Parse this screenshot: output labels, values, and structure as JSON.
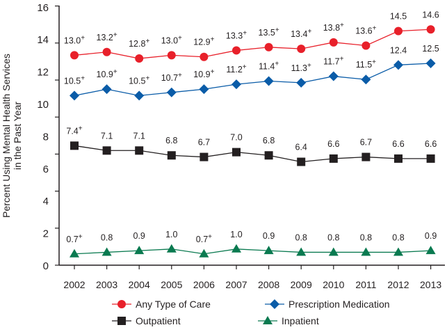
{
  "chart_data": {
    "type": "line",
    "title": "",
    "ylabel": [
      "Percent Using Mental Health Services",
      "in the Past Year"
    ],
    "xlabel": "",
    "ylim": [
      0,
      16
    ],
    "yticks": [
      0,
      2,
      4,
      6,
      8,
      10,
      12,
      14,
      16
    ],
    "categories": [
      "2002",
      "2003",
      "2004",
      "2005",
      "2006",
      "2007",
      "2008",
      "2009",
      "2010",
      "2011",
      "2012",
      "2013"
    ],
    "legend_position": "bottom",
    "grid": false,
    "significance_marker": "+",
    "series": [
      {
        "name": "Any Type of Care",
        "color": "#e8202a",
        "marker": "circle",
        "values": [
          13.0,
          13.2,
          12.8,
          13.0,
          12.9,
          13.3,
          13.5,
          13.4,
          13.8,
          13.6,
          14.5,
          14.6
        ],
        "significant": [
          true,
          true,
          true,
          true,
          true,
          true,
          true,
          true,
          true,
          true,
          false,
          false
        ]
      },
      {
        "name": "Prescription Medication",
        "color": "#0a5ca8",
        "marker": "diamond",
        "values": [
          10.5,
          10.9,
          10.5,
          10.7,
          10.9,
          11.2,
          11.4,
          11.3,
          11.7,
          11.5,
          12.4,
          12.5
        ],
        "significant": [
          true,
          true,
          true,
          true,
          true,
          true,
          true,
          true,
          true,
          true,
          false,
          false
        ]
      },
      {
        "name": "Outpatient",
        "color": "#231f20",
        "marker": "square",
        "values": [
          7.4,
          7.1,
          7.1,
          6.8,
          6.7,
          7.0,
          6.8,
          6.4,
          6.6,
          6.7,
          6.6,
          6.6
        ],
        "significant": [
          true,
          false,
          false,
          false,
          false,
          false,
          false,
          false,
          false,
          false,
          false,
          false
        ]
      },
      {
        "name": "Inpatient",
        "color": "#0a7a50",
        "marker": "triangle",
        "values": [
          0.7,
          0.8,
          0.9,
          1.0,
          0.7,
          1.0,
          0.9,
          0.8,
          0.8,
          0.8,
          0.8,
          0.9
        ],
        "significant": [
          true,
          false,
          false,
          false,
          true,
          false,
          false,
          false,
          false,
          false,
          false,
          false
        ]
      }
    ]
  }
}
